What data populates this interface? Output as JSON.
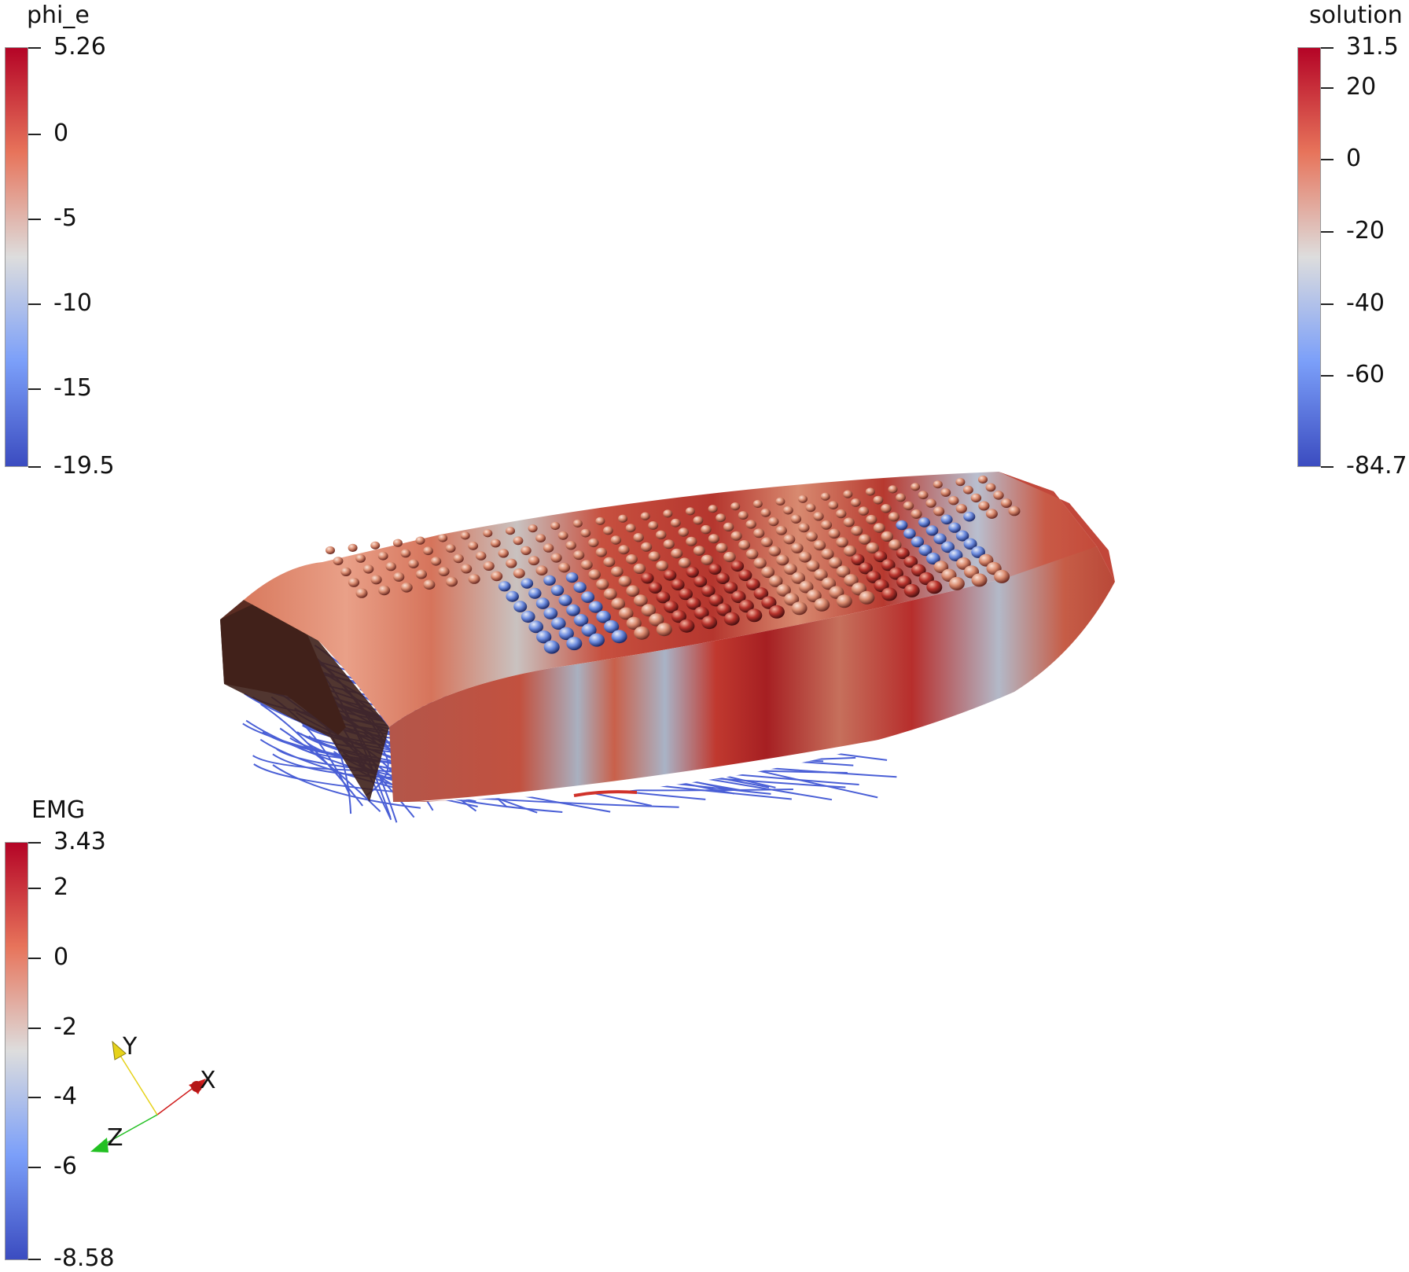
{
  "colorbars": {
    "phi_e": {
      "title": "phi_e",
      "max_label": "5.26",
      "min_label": "-19.5",
      "ticks": [
        "0",
        "-5",
        "-10",
        "-15"
      ]
    },
    "solution": {
      "title": "solution",
      "max_label": "31.5",
      "min_label": "-84.7",
      "ticks": [
        "20",
        "0",
        "-20",
        "-40",
        "-60"
      ]
    },
    "emg": {
      "title": "EMG",
      "max_label": "3.43",
      "min_label": "-8.58",
      "ticks": [
        "2",
        "0",
        "-2",
        "-4",
        "-6"
      ]
    }
  },
  "orientation_axes": {
    "x_label": "X",
    "y_label": "Y",
    "z_label": "Z"
  },
  "colors": {
    "map_high": "#b40426",
    "map_mid": "#dddddd",
    "map_low": "#3b4cc0",
    "fiber_lines": "#4a5fd6",
    "x_axis": "#d01c1c",
    "y_axis": "#e6d21a",
    "z_axis": "#22c022"
  }
}
